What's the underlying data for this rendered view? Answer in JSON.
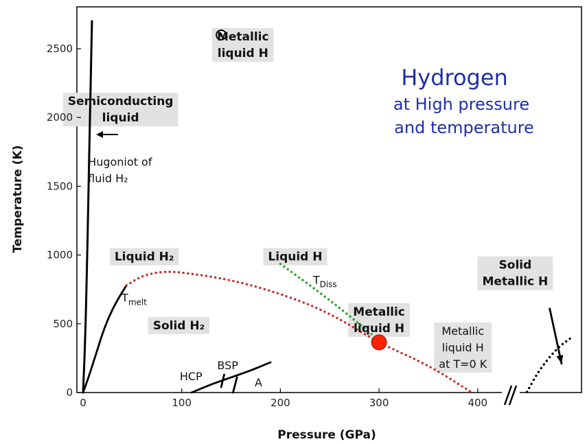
{
  "chart_data": {
    "type": "line",
    "title": "Hydrogen",
    "subtitle_lines": [
      "at High pressure",
      "and temperature"
    ],
    "xlabel": "Pressure (GPa)",
    "ylabel": "Temperature (K)",
    "xlim": [
      -8,
      500
    ],
    "ylim": [
      0,
      2750
    ],
    "x_ticks": [
      0,
      100,
      200,
      300,
      400
    ],
    "y_ticks": [
      0,
      500,
      1000,
      1500,
      2000,
      2500
    ],
    "grid": false,
    "colors": {
      "melt_line": "#cc2a2a",
      "dissociation_line": "#2aa02a",
      "title": "#1f2fa8",
      "critical_point": "#ff2200",
      "label_box": "#e2e2e2"
    },
    "series": [
      {
        "id": "hugoniot",
        "style": "solid",
        "color": "#000000",
        "points": [
          [
            0,
            0
          ],
          [
            2,
            350
          ],
          [
            4,
            900
          ],
          [
            5,
            1300
          ],
          [
            7,
            2000
          ],
          [
            9,
            2700
          ]
        ]
      },
      {
        "id": "melt_solid",
        "style": "solid",
        "color": "#000000",
        "points": [
          [
            0,
            0
          ],
          [
            6,
            120
          ],
          [
            14,
            300
          ],
          [
            22,
            480
          ],
          [
            32,
            640
          ],
          [
            44,
            780
          ]
        ]
      },
      {
        "id": "melt_dotted",
        "style": "dotted",
        "color": "#cc2a2a",
        "points": [
          [
            44,
            780
          ],
          [
            60,
            850
          ],
          [
            80,
            880
          ],
          [
            100,
            875
          ],
          [
            150,
            820
          ],
          [
            200,
            720
          ],
          [
            250,
            580
          ],
          [
            300,
            360
          ],
          [
            350,
            200
          ],
          [
            393,
            5
          ]
        ]
      },
      {
        "id": "dissociation",
        "style": "dotted",
        "color": "#2aa02a",
        "points": [
          [
            200,
            935
          ],
          [
            250,
            675
          ],
          [
            300,
            380
          ]
        ]
      },
      {
        "id": "phase_hcp_bsp",
        "style": "solid",
        "color": "#000000",
        "points": [
          [
            110,
            0
          ],
          [
            130,
            60
          ],
          [
            150,
            110
          ],
          [
            170,
            160
          ],
          [
            190,
            220
          ]
        ]
      },
      {
        "id": "phase_divider_1",
        "style": "solid",
        "color": "#000000",
        "points": [
          [
            140,
            40
          ],
          [
            143,
            130
          ]
        ]
      },
      {
        "id": "phase_divider_2",
        "style": "solid",
        "color": "#000000",
        "points": [
          [
            152,
            0
          ],
          [
            156,
            110
          ]
        ]
      },
      {
        "id": "solid_metallic_boundary",
        "style": "dotted",
        "color": "#000000",
        "points": [
          [
            450,
            5
          ],
          [
            462,
            160
          ],
          [
            480,
            320
          ],
          [
            495,
            400
          ]
        ]
      },
      {
        "id": "solid_metallic_arrow",
        "style": "solid",
        "color": "#000000",
        "points": [
          [
            473,
            610
          ],
          [
            485,
            210
          ]
        ]
      }
    ],
    "markers": [
      {
        "id": "critical_point",
        "x": 300,
        "y": 365
      },
      {
        "id": "metallic_liquid_experiment",
        "x": 140,
        "y": 2600
      }
    ],
    "annotations": [
      {
        "id": "metallic-liquid-h-top",
        "lines": [
          "Metallic",
          "liquid H"
        ],
        "boxed": true,
        "at": [
          162,
          2560
        ]
      },
      {
        "id": "semiconducting-liquid",
        "lines": [
          "Semiconducting",
          "liquid"
        ],
        "boxed": true,
        "at": [
          38,
          2090
        ]
      },
      {
        "id": "hugoniot",
        "lines": [
          "Hugoniot of",
          "fluid H₂"
        ],
        "boxed": false,
        "at": [
          5,
          1650
        ]
      },
      {
        "id": "liquid-h2",
        "lines": [
          "Liquid H₂"
        ],
        "boxed": true,
        "at": [
          62,
          960
        ]
      },
      {
        "id": "liquid-h",
        "lines": [
          "Liquid H"
        ],
        "boxed": true,
        "at": [
          215,
          960
        ]
      },
      {
        "id": "t-diss",
        "lines": [
          "T_Diss"
        ],
        "boxed": false,
        "at": [
          233,
          790
        ]
      },
      {
        "id": "t-melt",
        "lines": [
          "T_melt"
        ],
        "boxed": false,
        "at": [
          39,
          660
        ]
      },
      {
        "id": "metallic-liquid-h-mid",
        "lines": [
          "Metallic",
          "liquid H"
        ],
        "boxed": true,
        "at": [
          300,
          560
        ]
      },
      {
        "id": "solid-h2",
        "lines": [
          "Solid H₂"
        ],
        "boxed": true,
        "at": [
          97,
          460
        ]
      },
      {
        "id": "metallic-liquid-h-zero",
        "lines": [
          "Metallic",
          "liquid H",
          "at T=0 K"
        ],
        "boxed": true,
        "at": [
          385,
          420
        ]
      },
      {
        "id": "solid-metallic-h",
        "lines": [
          "Solid",
          "Metallic H"
        ],
        "boxed": true,
        "at": [
          438,
          900
        ]
      },
      {
        "id": "hcp",
        "lines": [
          "HCP"
        ],
        "boxed": false,
        "at": [
          98,
          90
        ]
      },
      {
        "id": "bsp",
        "lines": [
          "BSP"
        ],
        "boxed": false,
        "at": [
          136,
          170
        ]
      },
      {
        "id": "phase-a",
        "lines": [
          "A"
        ],
        "boxed": false,
        "at": [
          174,
          45
        ]
      }
    ]
  }
}
